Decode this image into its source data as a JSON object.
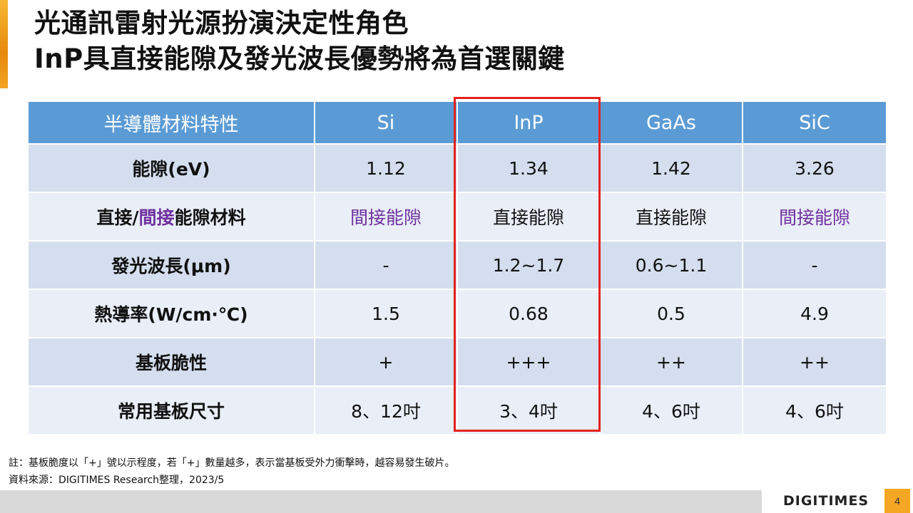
{
  "title": {
    "line1": "光通訊雷射光源扮演決定性角色",
    "line2": "InP具直接能隙及發光波長優勢將為首選關鍵"
  },
  "table": {
    "headers": [
      "半導體材料特性",
      "Si",
      "InP",
      "GaAs",
      "SiC"
    ],
    "rows": [
      {
        "label": "能隙(eV)",
        "cells": [
          "1.12",
          "1.34",
          "1.42",
          "3.26"
        ]
      },
      {
        "label_parts": [
          "直接/",
          "間接",
          "能隙材料"
        ],
        "cells": [
          "間接能隙",
          "直接能隙",
          "直接能隙",
          "間接能隙"
        ]
      },
      {
        "label": "發光波長(μm)",
        "cells": [
          "-",
          "1.2~1.7",
          "0.6~1.1",
          "-"
        ]
      },
      {
        "label": "熱導率(W/cm·℃)",
        "cells": [
          "1.5",
          "0.68",
          "0.5",
          "4.9"
        ]
      },
      {
        "label": "基板脆性",
        "cells": [
          "+",
          "+++",
          "++",
          "++"
        ]
      },
      {
        "label": "常用基板尺寸",
        "cells": [
          "8、12吋",
          "3、4吋",
          "4、6吋",
          "4、6吋"
        ]
      }
    ]
  },
  "notes": {
    "note": "註：基板脆度以「+」號以示程度，若「+」數量越多，表示當基板受外力衝擊時，越容易發生破片。",
    "source": "資料來源：DIGITIMES Research整理，2023/5"
  },
  "footer": {
    "logo": "DIGITIMES",
    "page_number": "4"
  },
  "colors": {
    "header_bg": "#5b9bd5",
    "row_dark": "#d4deee",
    "row_light": "#e9eef7",
    "highlight": "#e32221",
    "indirect_text": "#7030a0",
    "accent": "#f5a623"
  }
}
